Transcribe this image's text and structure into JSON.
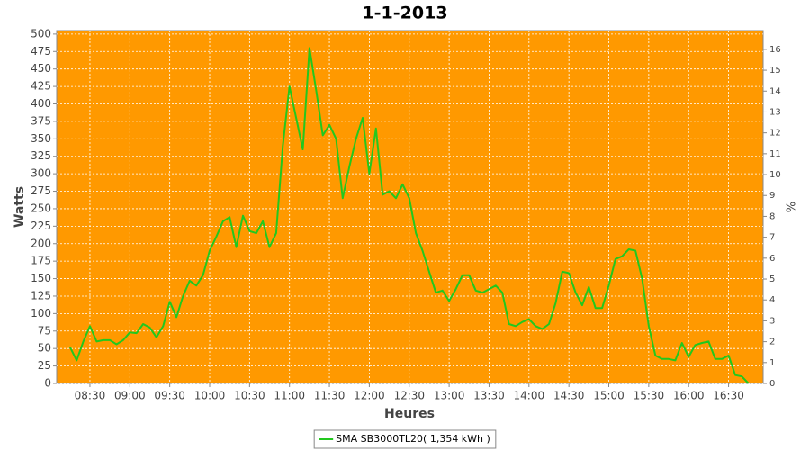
{
  "chart_data": {
    "type": "line",
    "title": "1-1-2013",
    "y_label": "Watts",
    "x_label": "Heures",
    "y2_label": "%",
    "x": [
      "08:15",
      "08:20",
      "08:25",
      "08:30",
      "08:35",
      "08:40",
      "08:45",
      "08:50",
      "08:55",
      "09:00",
      "09:05",
      "09:10",
      "09:15",
      "09:20",
      "09:25",
      "09:30",
      "09:35",
      "09:40",
      "09:45",
      "09:50",
      "09:55",
      "10:00",
      "10:05",
      "10:10",
      "10:15",
      "10:20",
      "10:25",
      "10:30",
      "10:35",
      "10:40",
      "10:45",
      "10:50",
      "10:55",
      "11:00",
      "11:05",
      "11:10",
      "11:15",
      "11:20",
      "11:25",
      "11:30",
      "11:35",
      "11:40",
      "11:45",
      "11:50",
      "11:55",
      "12:00",
      "12:05",
      "12:10",
      "12:15",
      "12:20",
      "12:25",
      "12:30",
      "12:35",
      "12:40",
      "12:45",
      "12:50",
      "12:55",
      "13:00",
      "13:05",
      "13:10",
      "13:15",
      "13:20",
      "13:25",
      "13:30",
      "13:35",
      "13:40",
      "13:45",
      "13:50",
      "13:55",
      "14:00",
      "14:05",
      "14:10",
      "14:15",
      "14:20",
      "14:25",
      "14:30",
      "14:35",
      "14:40",
      "14:45",
      "14:50",
      "14:55",
      "15:00",
      "15:05",
      "15:10",
      "15:15",
      "15:20",
      "15:25",
      "15:30",
      "15:35",
      "15:40",
      "15:45",
      "15:50",
      "15:55",
      "16:00",
      "16:05",
      "16:10",
      "16:15",
      "16:20",
      "16:25",
      "16:30",
      "16:35",
      "16:40",
      "16:45"
    ],
    "series": [
      {
        "name": "SMA SB3000TL20( 1,354 kWh )",
        "color": "#22c81e",
        "values": [
          52,
          33,
          60,
          82,
          60,
          62,
          62,
          56,
          62,
          73,
          72,
          85,
          80,
          66,
          82,
          117,
          95,
          125,
          147,
          140,
          155,
          190,
          210,
          232,
          238,
          195,
          240,
          218,
          215,
          232,
          195,
          215,
          340,
          425,
          380,
          335,
          480,
          420,
          355,
          370,
          350,
          265,
          310,
          350,
          380,
          300,
          365,
          270,
          275,
          265,
          285,
          265,
          215,
          190,
          160,
          130,
          133,
          118,
          135,
          155,
          155,
          133,
          130,
          135,
          140,
          130,
          85,
          82,
          88,
          92,
          82,
          78,
          85,
          115,
          160,
          158,
          130,
          112,
          138,
          108,
          108,
          140,
          178,
          182,
          192,
          190,
          150,
          82,
          40,
          35,
          35,
          33,
          58,
          38,
          55,
          58,
          60,
          35,
          35,
          40,
          12,
          10,
          0
        ]
      }
    ],
    "xlim": [
      "08:05",
      "16:56"
    ],
    "xticks": [
      "08:30",
      "09:00",
      "09:30",
      "10:00",
      "10:30",
      "11:00",
      "11:30",
      "12:00",
      "12:30",
      "13:00",
      "13:30",
      "14:00",
      "14:30",
      "15:00",
      "15:30",
      "16:00",
      "16:30"
    ],
    "ylim": [
      0,
      505
    ],
    "yticks": [
      0,
      25,
      50,
      75,
      100,
      125,
      150,
      175,
      200,
      225,
      250,
      275,
      300,
      325,
      350,
      375,
      400,
      425,
      450,
      475,
      500
    ],
    "y2lim": [
      0,
      16.9
    ],
    "y2ticks": [
      0,
      1,
      2,
      3,
      4,
      5,
      6,
      7,
      8,
      9,
      10,
      11,
      12,
      13,
      14,
      15,
      16
    ],
    "grid": true,
    "background": "#ff9900",
    "legend": "bottom"
  }
}
